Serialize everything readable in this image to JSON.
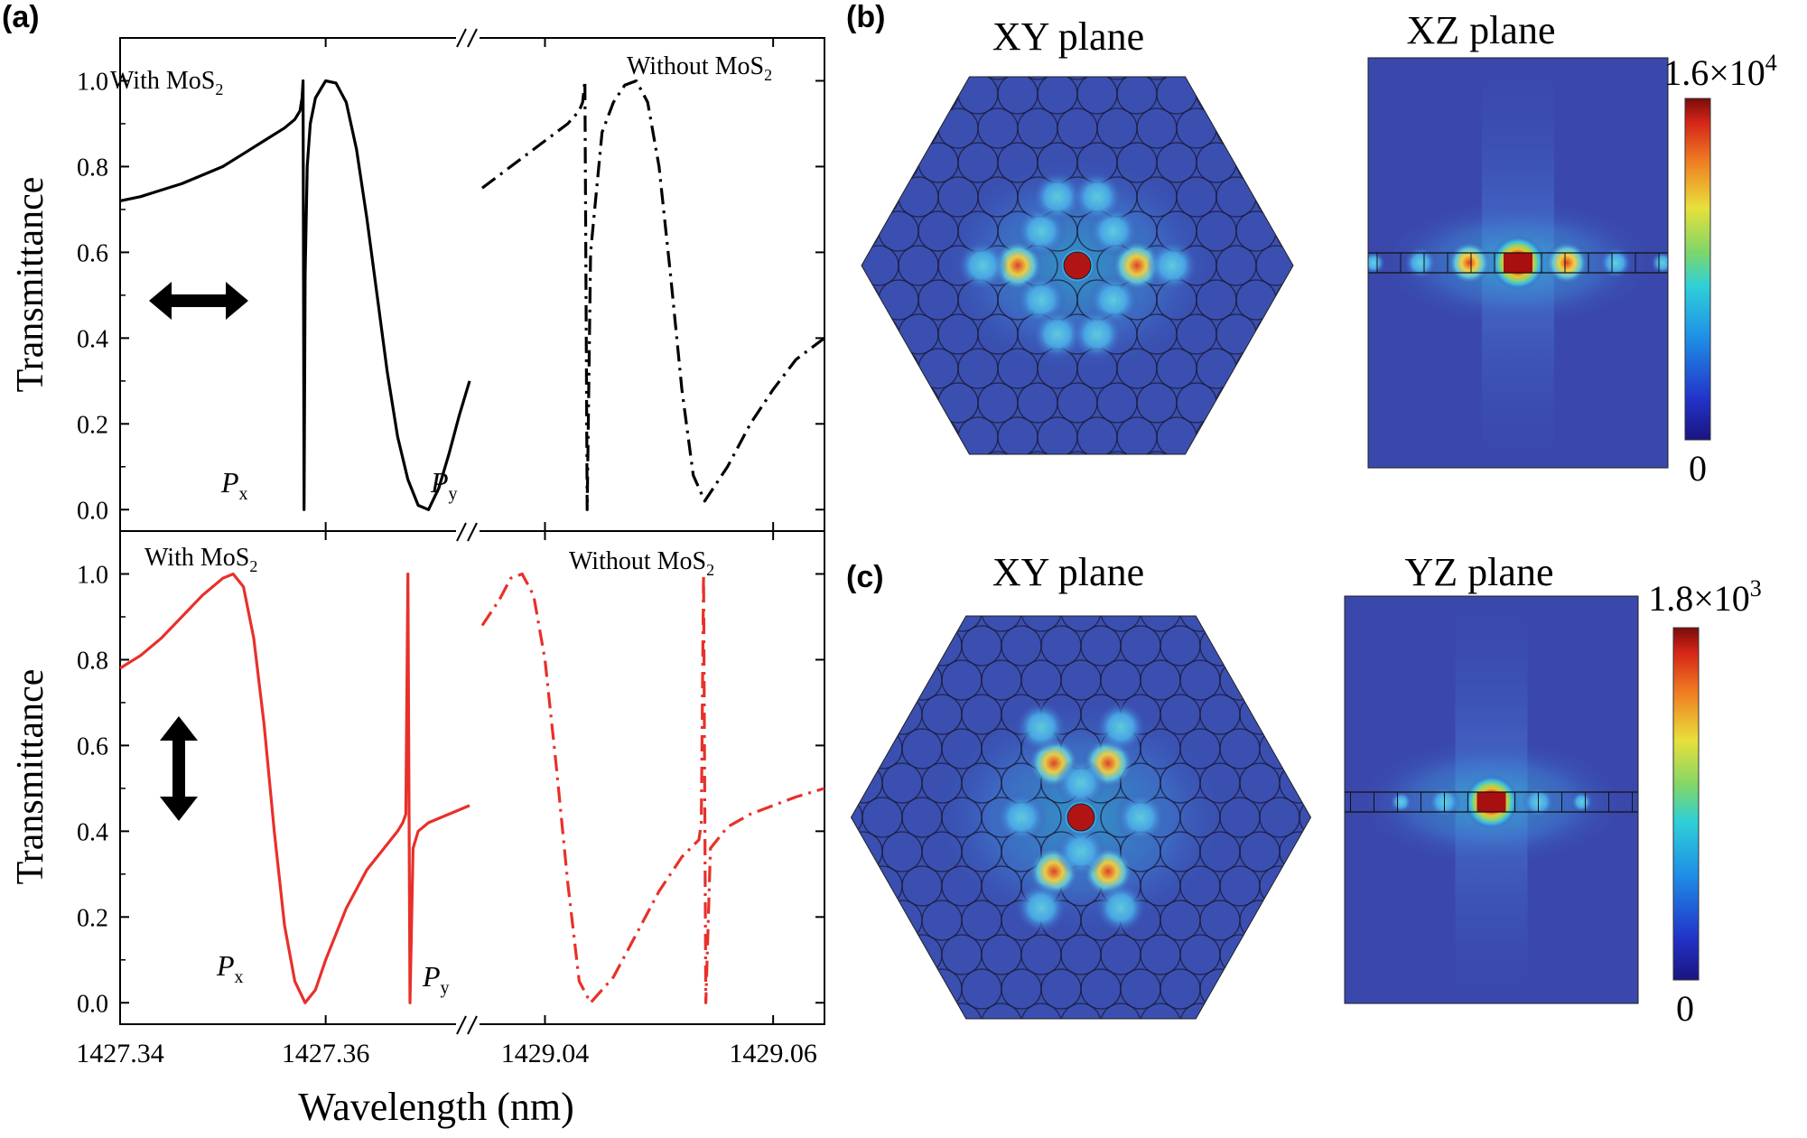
{
  "panel_labels": {
    "a": "(a)",
    "b": "(b)",
    "c": "(c)"
  },
  "shared_xlabel": "Wavelength (nm)",
  "chart_data": [
    {
      "type": "line",
      "panel": "(a) top",
      "ylabel": "Transmittance",
      "ylim": [
        -0.05,
        1.1
      ],
      "yticks": [
        "0.0",
        "0.2",
        "0.4",
        "0.6",
        "0.8",
        "1.0"
      ],
      "ytick_values": [
        0,
        0.2,
        0.4,
        0.6,
        0.8,
        1.0
      ],
      "xticks_left": [
        "1427.34",
        "1427.36"
      ],
      "xticks_right": [
        "1429.04",
        "1429.06"
      ],
      "broken_x_axis": true,
      "polarization": "horizontal",
      "mode_labels": {
        "px": "P",
        "px_sub": "x",
        "py": "P",
        "py_sub": "y"
      },
      "color": "#000000",
      "series": [
        {
          "name": "With MoS2",
          "style": "solid",
          "x": [
            1427.34,
            1427.342,
            1427.344,
            1427.346,
            1427.348,
            1427.35,
            1427.352,
            1427.354,
            1427.356,
            1427.357,
            1427.3575,
            1427.3577,
            1427.3578,
            1427.3579,
            1427.358,
            1427.3582,
            1427.3585,
            1427.359,
            1427.36,
            1427.361,
            1427.362,
            1427.363,
            1427.364,
            1427.365,
            1427.366,
            1427.367,
            1427.368,
            1427.369,
            1427.37,
            1427.371,
            1427.372,
            1427.373,
            1427.374
          ],
          "y": [
            0.72,
            0.73,
            0.745,
            0.76,
            0.78,
            0.8,
            0.83,
            0.86,
            0.89,
            0.91,
            0.93,
            0.96,
            1.0,
            0.0,
            0.55,
            0.8,
            0.9,
            0.96,
            1.0,
            0.995,
            0.95,
            0.84,
            0.68,
            0.5,
            0.32,
            0.17,
            0.07,
            0.01,
            0.0,
            0.05,
            0.13,
            0.22,
            0.3
          ]
        },
        {
          "name": "Without MoS2",
          "style": "dash-dot",
          "x": [
            1429.0345,
            1429.036,
            1429.038,
            1429.04,
            1429.042,
            1429.043,
            1429.0433,
            1429.0435,
            1429.0437,
            1429.044,
            1429.045,
            1429.046,
            1429.047,
            1429.048,
            1429.049,
            1429.05,
            1429.051,
            1429.052,
            1429.053,
            1429.054,
            1429.056,
            1429.058,
            1429.06,
            1429.062,
            1429.0645
          ],
          "y": [
            0.75,
            0.78,
            0.82,
            0.86,
            0.9,
            0.93,
            0.95,
            1.0,
            0.0,
            0.6,
            0.88,
            0.95,
            0.99,
            1.0,
            0.95,
            0.8,
            0.55,
            0.28,
            0.08,
            0.02,
            0.1,
            0.2,
            0.28,
            0.35,
            0.4
          ]
        }
      ],
      "annotations": [
        "With MoS",
        "Without MoS"
      ]
    },
    {
      "type": "line",
      "panel": "(a) bottom",
      "ylabel": "Transmittance",
      "ylim": [
        -0.05,
        1.1
      ],
      "yticks": [
        "0.0",
        "0.2",
        "0.4",
        "0.6",
        "0.8",
        "1.0"
      ],
      "ytick_values": [
        0,
        0.2,
        0.4,
        0.6,
        0.8,
        1.0
      ],
      "xticks_left": [
        "1427.34",
        "1427.36"
      ],
      "xticks_right": [
        "1429.04",
        "1429.06"
      ],
      "xlabel": "Wavelength (nm)",
      "broken_x_axis": true,
      "polarization": "vertical",
      "mode_labels": {
        "px": "P",
        "px_sub": "x",
        "py": "P",
        "py_sub": "y"
      },
      "color": "#e8302a",
      "series": [
        {
          "name": "With MoS2",
          "style": "solid",
          "x": [
            1427.34,
            1427.342,
            1427.344,
            1427.346,
            1427.348,
            1427.35,
            1427.351,
            1427.352,
            1427.353,
            1427.354,
            1427.355,
            1427.356,
            1427.357,
            1427.358,
            1427.359,
            1427.36,
            1427.362,
            1427.364,
            1427.366,
            1427.367,
            1427.3675,
            1427.3678,
            1427.368,
            1427.3682,
            1427.3685,
            1427.369,
            1427.37,
            1427.372,
            1427.374
          ],
          "y": [
            0.78,
            0.81,
            0.85,
            0.9,
            0.95,
            0.99,
            1.0,
            0.97,
            0.85,
            0.65,
            0.4,
            0.18,
            0.05,
            0.0,
            0.03,
            0.1,
            0.22,
            0.31,
            0.37,
            0.4,
            0.42,
            0.44,
            1.0,
            0.0,
            0.36,
            0.4,
            0.42,
            0.44,
            0.46
          ]
        },
        {
          "name": "Without MoS2",
          "style": "dash-dot",
          "x": [
            1429.0345,
            1429.036,
            1429.037,
            1429.038,
            1429.039,
            1429.04,
            1429.041,
            1429.042,
            1429.043,
            1429.044,
            1429.046,
            1429.048,
            1429.05,
            1429.052,
            1429.0535,
            1429.0537,
            1429.0539,
            1429.0541,
            1429.0545,
            1429.056,
            1429.058,
            1429.06,
            1429.062,
            1429.0645
          ],
          "y": [
            0.88,
            0.94,
            0.99,
            1.0,
            0.95,
            0.8,
            0.55,
            0.28,
            0.05,
            0.0,
            0.06,
            0.16,
            0.26,
            0.34,
            0.38,
            0.42,
            1.0,
            0.0,
            0.36,
            0.41,
            0.44,
            0.46,
            0.48,
            0.5
          ]
        }
      ],
      "annotations": [
        "With MoS",
        "Without MoS"
      ]
    },
    {
      "type": "heatmap",
      "panel": "(b)",
      "maps": [
        {
          "title": "XY plane",
          "shape": "hexagon",
          "pattern": "horizontal"
        },
        {
          "title": "XZ plane",
          "shape": "rectangle",
          "pattern": "horizontal"
        }
      ],
      "colorbar": {
        "max_base": "1.6×10",
        "max_exp": "4",
        "min": "0",
        "colormap": "jet"
      }
    },
    {
      "type": "heatmap",
      "panel": "(c)",
      "maps": [
        {
          "title": "XY plane",
          "shape": "hexagon",
          "pattern": "vertical"
        },
        {
          "title": "YZ plane",
          "shape": "rectangle",
          "pattern": "single"
        }
      ],
      "colorbar": {
        "max_base": "1.8×10",
        "max_exp": "3",
        "min": "0",
        "colormap": "jet"
      }
    }
  ]
}
